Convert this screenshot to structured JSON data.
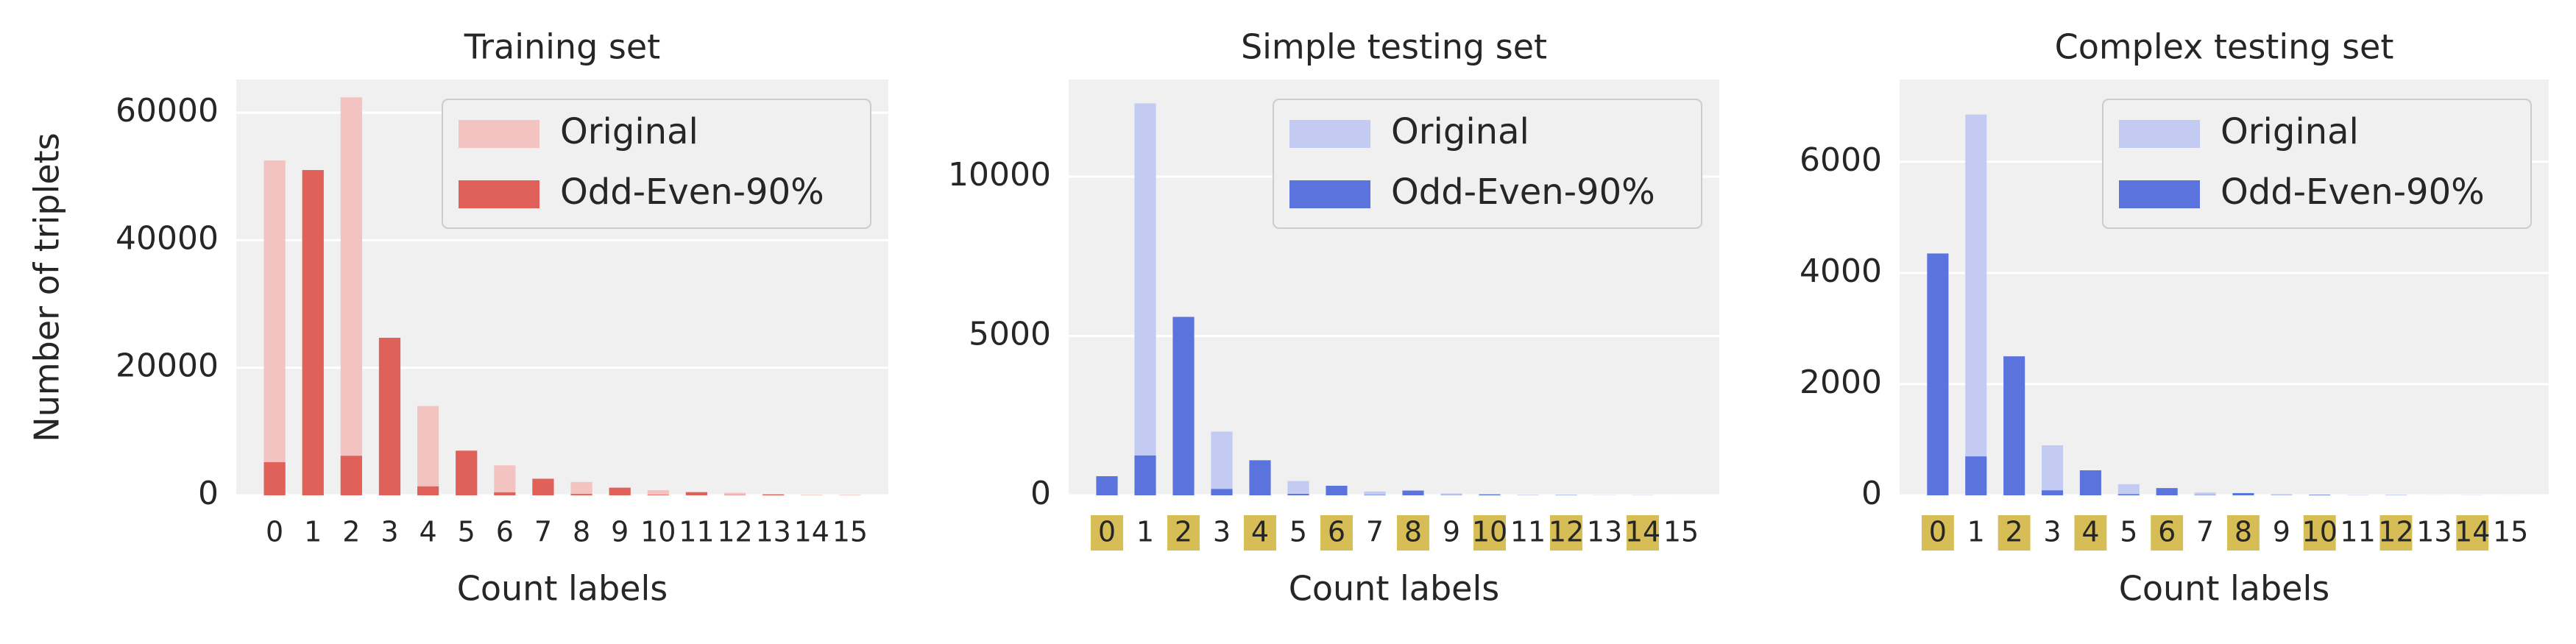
{
  "chart_data": [
    {
      "type": "bar",
      "title": "Training set",
      "xlabel": "Count labels",
      "ylabel": "Number of triplets",
      "categories": [
        "0",
        "1",
        "2",
        "3",
        "4",
        "5",
        "6",
        "7",
        "8",
        "9",
        "10",
        "11",
        "12",
        "13",
        "14",
        "15"
      ],
      "series": [
        {
          "name": "Original",
          "color": "#f2c3c0",
          "values": [
            52500,
            51000,
            62400,
            24700,
            14000,
            7000,
            4700,
            2600,
            2100,
            1200,
            800,
            500,
            400,
            150,
            80,
            30
          ]
        },
        {
          "name": "Odd-Even-90%",
          "color": "#e0605a",
          "values": [
            5200,
            51000,
            6200,
            24700,
            1400,
            7000,
            470,
            2600,
            210,
            1200,
            80,
            500,
            40,
            150,
            8,
            30
          ]
        }
      ],
      "ylim": [
        0,
        65200
      ],
      "yticks": [
        0,
        20000,
        40000,
        60000
      ],
      "grid": true,
      "legend": "upper right"
    },
    {
      "type": "bar",
      "title": "Simple testing set",
      "xlabel": "Count labels",
      "categories": [
        "0",
        "1",
        "2",
        "3",
        "4",
        "5",
        "6",
        "7",
        "8",
        "9",
        "10",
        "11",
        "12",
        "13",
        "14",
        "15"
      ],
      "series": [
        {
          "name": "Original",
          "color": "#c3cbf2",
          "values": [
            600,
            12300,
            5600,
            2000,
            1100,
            450,
            300,
            120,
            150,
            60,
            30,
            15,
            10,
            5,
            3,
            1
          ]
        },
        {
          "name": "Odd-Even-90%",
          "color": "#5b73dd",
          "values": [
            600,
            1250,
            5600,
            200,
            1100,
            45,
            300,
            12,
            150,
            6,
            30,
            2,
            10,
            1,
            3,
            0
          ]
        }
      ],
      "ylim": [
        0,
        13050
      ],
      "yticks": [
        0,
        5000,
        10000
      ],
      "grid": true,
      "legend": "upper right",
      "highlighted": [
        0,
        2,
        4,
        6,
        8,
        10,
        12,
        14
      ],
      "highlight_color": "#d6bd55"
    },
    {
      "type": "bar",
      "title": "Complex testing set",
      "xlabel": "Count labels",
      "categories": [
        "0",
        "1",
        "2",
        "3",
        "4",
        "5",
        "6",
        "7",
        "8",
        "9",
        "10",
        "11",
        "12",
        "13",
        "14",
        "15"
      ],
      "series": [
        {
          "name": "Original",
          "color": "#c3cbf2",
          "values": [
            4350,
            6850,
            2500,
            900,
            450,
            200,
            130,
            50,
            40,
            20,
            10,
            5,
            4,
            2,
            1,
            1
          ]
        },
        {
          "name": "Odd-Even-90%",
          "color": "#5b73dd",
          "values": [
            4350,
            700,
            2500,
            90,
            450,
            20,
            130,
            5,
            40,
            2,
            10,
            1,
            4,
            0,
            1,
            0
          ]
        }
      ],
      "ylim": [
        0,
        7480
      ],
      "yticks": [
        0,
        2000,
        4000,
        6000
      ],
      "grid": true,
      "legend": "upper right",
      "highlighted": [
        0,
        2,
        4,
        6,
        8,
        10,
        12,
        14
      ],
      "highlight_color": "#d6bd55"
    }
  ]
}
